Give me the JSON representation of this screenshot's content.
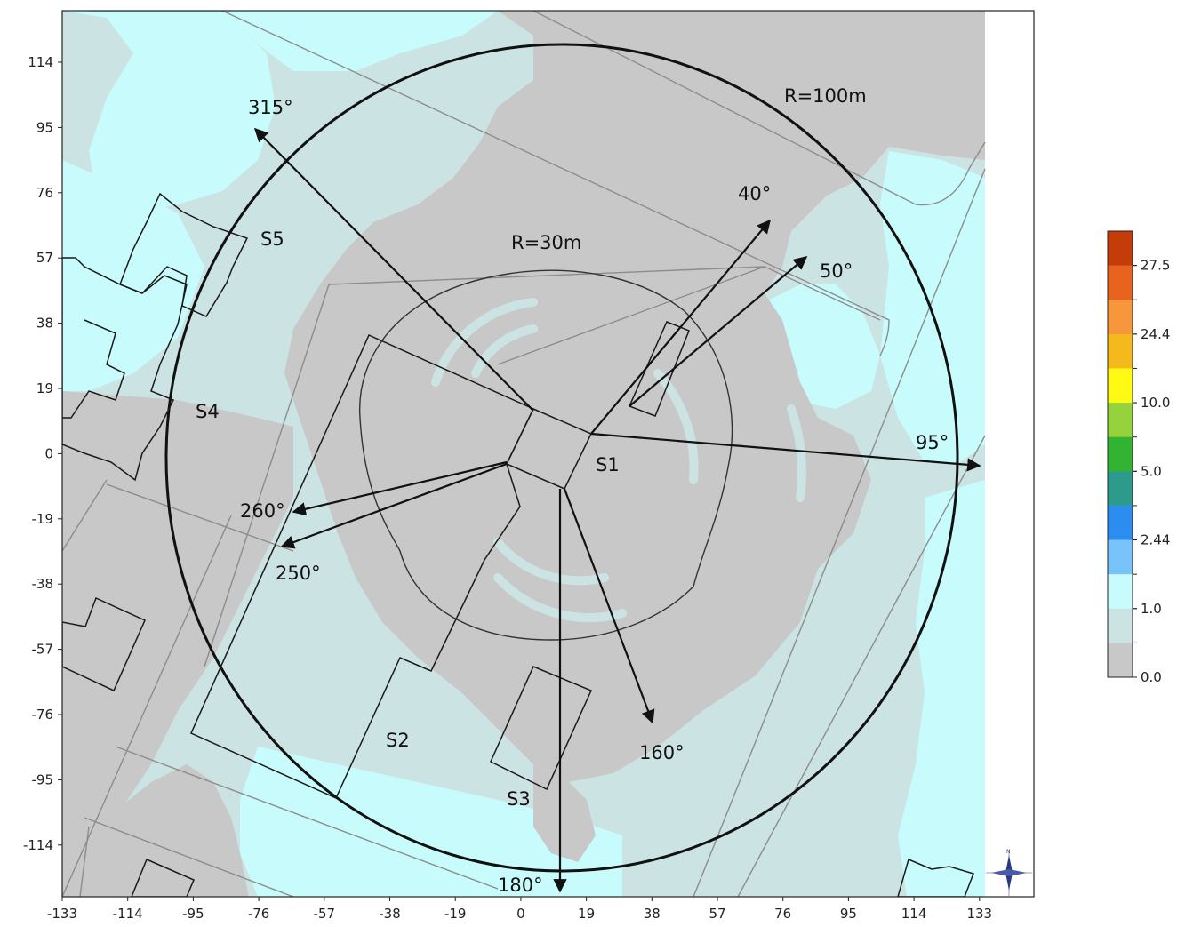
{
  "map": {
    "x_ticks": [
      "-133",
      "-114",
      "-95",
      "-76",
      "-57",
      "-38",
      "-19",
      "0",
      "19",
      "38",
      "57",
      "76",
      "95",
      "114",
      "133"
    ],
    "y_ticks": [
      "114",
      "95",
      "76",
      "57",
      "38",
      "19",
      "0",
      "-19",
      "-38",
      "-57",
      "-76",
      "-95",
      "-114"
    ],
    "labels": {
      "r100": "R=100m",
      "r30": "R=30m",
      "s1": "S1",
      "s2": "S2",
      "s3": "S3",
      "s4": "S4",
      "s5": "S5"
    },
    "directions": [
      {
        "label": "315°",
        "azimuth_deg": 315
      },
      {
        "label": "40°",
        "azimuth_deg": 40
      },
      {
        "label": "50°",
        "azimuth_deg": 50
      },
      {
        "label": "95°",
        "azimuth_deg": 95
      },
      {
        "label": "160°",
        "azimuth_deg": 160
      },
      {
        "label": "180°",
        "azimuth_deg": 180
      },
      {
        "label": "250°",
        "azimuth_deg": 250
      },
      {
        "label": "260°",
        "azimuth_deg": 260
      }
    ],
    "colors": {
      "zone_gray": "#c8c8c8",
      "zone_light": "#cce3e4",
      "zone_cyan": "#c8fcfc",
      "building_line": "#1a1a1a",
      "road_line": "#8c8c8c"
    }
  },
  "colorbar": {
    "tick_labels": [
      "27.5",
      "24.4",
      "10.0",
      "5.0",
      "2.44",
      "1.0",
      "0.0"
    ],
    "colors": [
      "#c43c0a",
      "#e8641e",
      "#f8963c",
      "#f5b91e",
      "#fffa14",
      "#96d23c",
      "#32b432",
      "#2d9b8c",
      "#2d8cf0",
      "#78c3fa",
      "#c8fcfc",
      "#cce3e4",
      "#c8c8c8"
    ]
  }
}
